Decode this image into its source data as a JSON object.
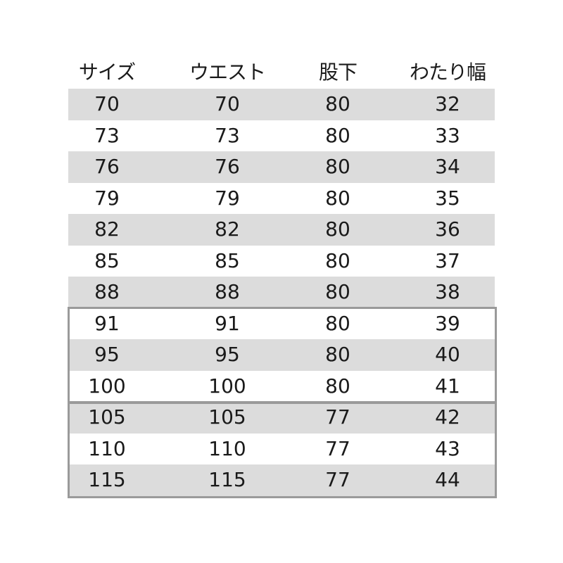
{
  "table": {
    "headers": [
      "サイズ",
      "ウエスト",
      "股下",
      "わたり幅"
    ],
    "rows": [
      [
        "70",
        "70",
        "80",
        "32"
      ],
      [
        "73",
        "73",
        "80",
        "33"
      ],
      [
        "76",
        "76",
        "80",
        "34"
      ],
      [
        "79",
        "79",
        "80",
        "35"
      ],
      [
        "82",
        "82",
        "80",
        "36"
      ],
      [
        "85",
        "85",
        "80",
        "37"
      ],
      [
        "88",
        "88",
        "80",
        "38"
      ],
      [
        "91",
        "91",
        "80",
        "39"
      ],
      [
        "95",
        "95",
        "80",
        "40"
      ],
      [
        "100",
        "100",
        "80",
        "41"
      ],
      [
        "105",
        "105",
        "77",
        "42"
      ],
      [
        "110",
        "110",
        "77",
        "43"
      ],
      [
        "115",
        "115",
        "77",
        "44"
      ]
    ],
    "stripe_color": "#dcdcdc",
    "group_border_color": "#9a9a9a"
  }
}
